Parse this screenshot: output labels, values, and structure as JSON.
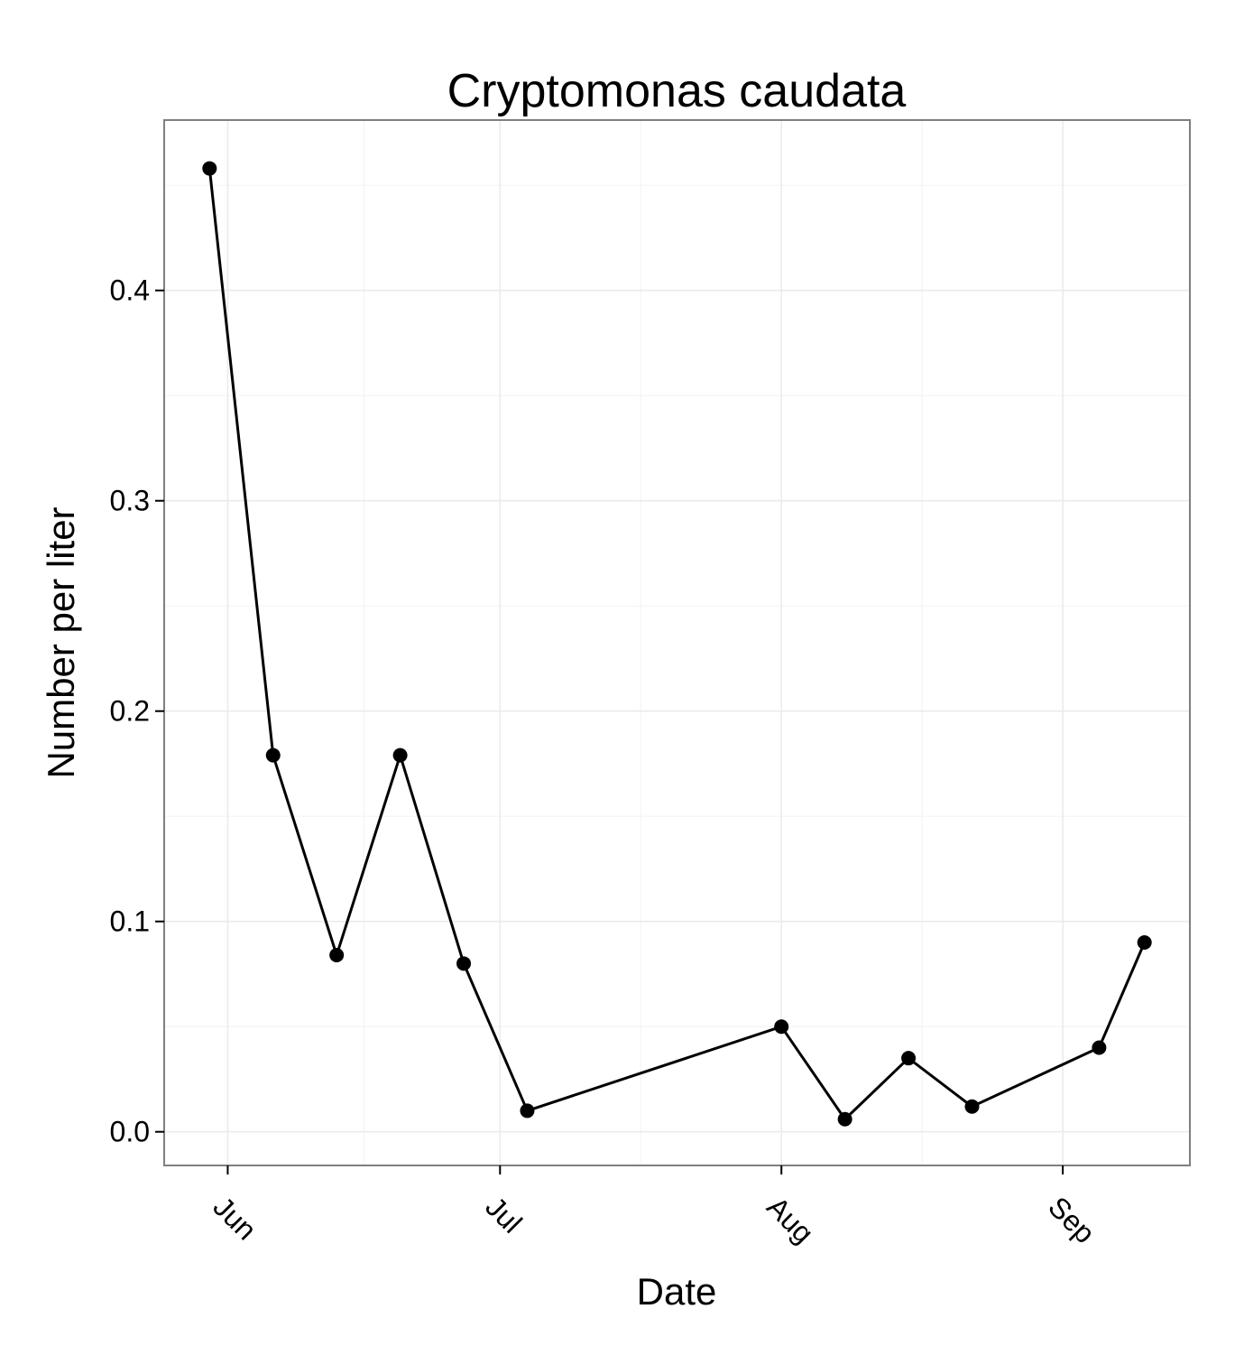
{
  "chart_data": {
    "type": "line",
    "title": "Cryptomonas caudata",
    "xlabel": "Date",
    "ylabel": "Number per liter",
    "x_ticks": [
      {
        "date": "2010-06-01",
        "label": "Jun"
      },
      {
        "date": "2010-07-01",
        "label": "Jul"
      },
      {
        "date": "2010-08-01",
        "label": "Aug"
      },
      {
        "date": "2010-09-01",
        "label": "Sep"
      }
    ],
    "y_ticks": [
      {
        "value": 0.0,
        "label": "0.0"
      },
      {
        "value": 0.1,
        "label": "0.1"
      },
      {
        "value": 0.2,
        "label": "0.2"
      },
      {
        "value": 0.3,
        "label": "0.3"
      },
      {
        "value": 0.4,
        "label": "0.4"
      }
    ],
    "xlim": [
      "2010-05-25",
      "2010-09-15"
    ],
    "ylim": [
      -0.016,
      0.481
    ],
    "grid": true,
    "series": [
      {
        "x": [
          "2010-05-30",
          "2010-06-06",
          "2010-06-13",
          "2010-06-20",
          "2010-06-27",
          "2010-07-04",
          "2010-08-01",
          "2010-08-08",
          "2010-08-15",
          "2010-08-22",
          "2010-09-05",
          "2010-09-10"
        ],
        "values": [
          0.458,
          0.179,
          0.084,
          0.179,
          0.08,
          0.01,
          0.05,
          0.006,
          0.035,
          0.012,
          0.04,
          0.09
        ]
      }
    ],
    "colors": {
      "line": "#000000",
      "point": "#000000",
      "grid": "#ebebeb",
      "panel_border": "#7f7f7f"
    }
  }
}
